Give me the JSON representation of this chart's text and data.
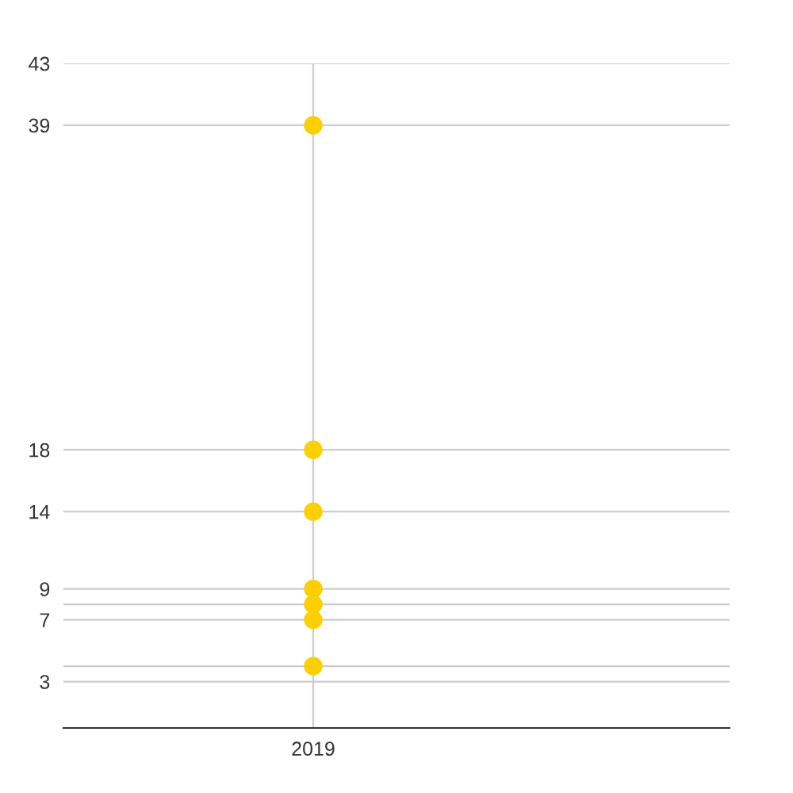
{
  "chart_data": {
    "type": "scatter",
    "categories": [
      "2019"
    ],
    "series": [
      {
        "color": "#fccf00",
        "values": [
          39
        ]
      },
      {
        "color": "#fccf00",
        "values": [
          18
        ]
      },
      {
        "color": "#fccf00",
        "values": [
          14
        ]
      },
      {
        "color": "#fccf00",
        "values": [
          9
        ]
      },
      {
        "color": "#fccf00",
        "values": [
          8
        ]
      },
      {
        "color": "#fccf00",
        "values": [
          7
        ]
      },
      {
        "color": "#fccf00",
        "values": [
          4
        ]
      }
    ],
    "ylim": [
      0,
      43
    ],
    "yticks": [
      3,
      {
        "value": 4,
        "label": null
      },
      7,
      {
        "value": 8,
        "label": null
      },
      9,
      14,
      18,
      39,
      43
    ],
    "grid": true,
    "marker": "circle"
  }
}
